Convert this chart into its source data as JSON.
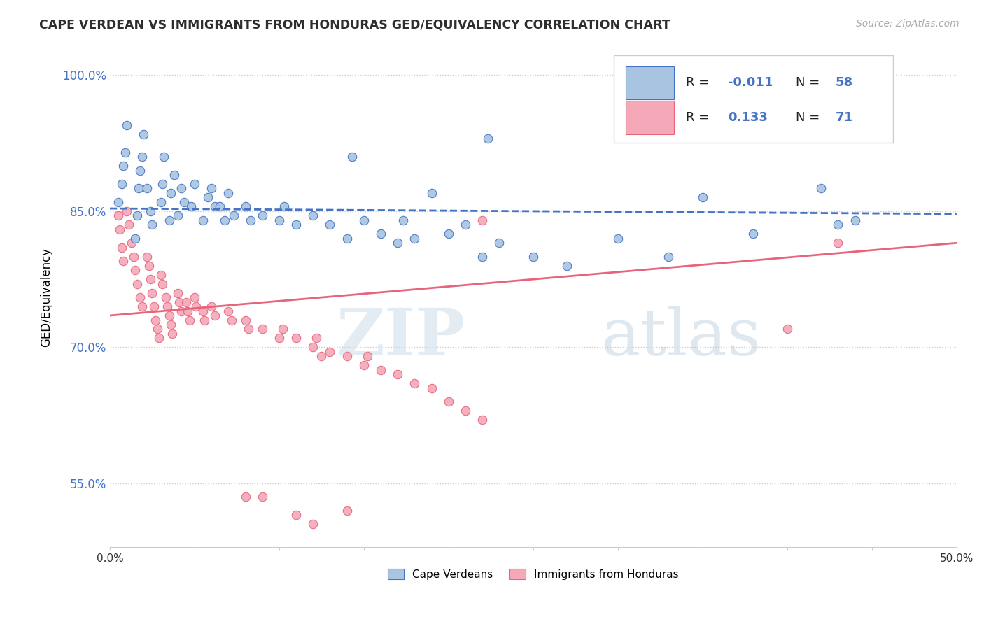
{
  "title": "CAPE VERDEAN VS IMMIGRANTS FROM HONDURAS GED/EQUIVALENCY CORRELATION CHART",
  "source": "Source: ZipAtlas.com",
  "ylabel": "GED/Equivalency",
  "xlim": [
    0.0,
    0.5
  ],
  "ylim": [
    0.48,
    1.03
  ],
  "yticks": [
    0.55,
    0.7,
    0.85,
    1.0
  ],
  "ytick_labels": [
    "55.0%",
    "70.0%",
    "85.0%",
    "100.0%"
  ],
  "xticks": [
    0.0,
    0.05,
    0.1,
    0.15,
    0.2,
    0.25,
    0.3,
    0.35,
    0.4,
    0.45,
    0.5
  ],
  "xtick_labels": [
    "0.0%",
    "",
    "",
    "",
    "",
    "",
    "",
    "",
    "",
    "",
    "50.0%"
  ],
  "grid_ticks": [
    0.55,
    0.7,
    0.85,
    1.0
  ],
  "blue_R": "-0.011",
  "blue_N": "58",
  "pink_R": "0.133",
  "pink_N": "71",
  "blue_color": "#a8c4e0",
  "pink_color": "#f4a8b8",
  "blue_line_color": "#4472c4",
  "pink_line_color": "#e8647a",
  "watermark_zip": "ZIP",
  "watermark_atlas": "atlas",
  "legend_label_blue": "Cape Verdeans",
  "legend_label_pink": "Immigrants from Honduras",
  "blue_line_y": [
    0.853,
    0.847
  ],
  "pink_line_y": [
    0.735,
    0.815
  ],
  "blue_scatter": [
    [
      0.005,
      0.86
    ],
    [
      0.007,
      0.88
    ],
    [
      0.008,
      0.9
    ],
    [
      0.009,
      0.915
    ],
    [
      0.01,
      0.945
    ],
    [
      0.015,
      0.82
    ],
    [
      0.016,
      0.845
    ],
    [
      0.017,
      0.875
    ],
    [
      0.018,
      0.895
    ],
    [
      0.019,
      0.91
    ],
    [
      0.02,
      0.935
    ],
    [
      0.022,
      0.875
    ],
    [
      0.024,
      0.85
    ],
    [
      0.025,
      0.835
    ],
    [
      0.03,
      0.86
    ],
    [
      0.031,
      0.88
    ],
    [
      0.032,
      0.91
    ],
    [
      0.035,
      0.84
    ],
    [
      0.036,
      0.87
    ],
    [
      0.038,
      0.89
    ],
    [
      0.04,
      0.845
    ],
    [
      0.042,
      0.875
    ],
    [
      0.044,
      0.86
    ],
    [
      0.048,
      0.855
    ],
    [
      0.05,
      0.88
    ],
    [
      0.055,
      0.84
    ],
    [
      0.058,
      0.865
    ],
    [
      0.06,
      0.875
    ],
    [
      0.062,
      0.855
    ],
    [
      0.065,
      0.855
    ],
    [
      0.068,
      0.84
    ],
    [
      0.07,
      0.87
    ],
    [
      0.073,
      0.845
    ],
    [
      0.08,
      0.855
    ],
    [
      0.083,
      0.84
    ],
    [
      0.09,
      0.845
    ],
    [
      0.1,
      0.84
    ],
    [
      0.103,
      0.855
    ],
    [
      0.11,
      0.835
    ],
    [
      0.12,
      0.845
    ],
    [
      0.13,
      0.835
    ],
    [
      0.14,
      0.82
    ],
    [
      0.143,
      0.91
    ],
    [
      0.15,
      0.84
    ],
    [
      0.16,
      0.825
    ],
    [
      0.17,
      0.815
    ],
    [
      0.173,
      0.84
    ],
    [
      0.18,
      0.82
    ],
    [
      0.19,
      0.87
    ],
    [
      0.2,
      0.825
    ],
    [
      0.21,
      0.835
    ],
    [
      0.22,
      0.8
    ],
    [
      0.223,
      0.93
    ],
    [
      0.23,
      0.815
    ],
    [
      0.25,
      0.8
    ],
    [
      0.27,
      0.79
    ],
    [
      0.3,
      0.82
    ],
    [
      0.33,
      0.8
    ],
    [
      0.35,
      0.865
    ],
    [
      0.38,
      0.825
    ],
    [
      0.42,
      0.875
    ],
    [
      0.43,
      0.835
    ],
    [
      0.44,
      0.84
    ]
  ],
  "pink_scatter": [
    [
      0.005,
      0.845
    ],
    [
      0.006,
      0.83
    ],
    [
      0.007,
      0.81
    ],
    [
      0.008,
      0.795
    ],
    [
      0.01,
      0.85
    ],
    [
      0.011,
      0.835
    ],
    [
      0.013,
      0.815
    ],
    [
      0.014,
      0.8
    ],
    [
      0.015,
      0.785
    ],
    [
      0.016,
      0.77
    ],
    [
      0.018,
      0.755
    ],
    [
      0.019,
      0.745
    ],
    [
      0.022,
      0.8
    ],
    [
      0.023,
      0.79
    ],
    [
      0.024,
      0.775
    ],
    [
      0.025,
      0.76
    ],
    [
      0.026,
      0.745
    ],
    [
      0.027,
      0.73
    ],
    [
      0.028,
      0.72
    ],
    [
      0.029,
      0.71
    ],
    [
      0.03,
      0.78
    ],
    [
      0.031,
      0.77
    ],
    [
      0.033,
      0.755
    ],
    [
      0.034,
      0.745
    ],
    [
      0.035,
      0.735
    ],
    [
      0.036,
      0.725
    ],
    [
      0.037,
      0.715
    ],
    [
      0.04,
      0.76
    ],
    [
      0.041,
      0.75
    ],
    [
      0.042,
      0.74
    ],
    [
      0.045,
      0.75
    ],
    [
      0.046,
      0.74
    ],
    [
      0.047,
      0.73
    ],
    [
      0.05,
      0.755
    ],
    [
      0.051,
      0.745
    ],
    [
      0.055,
      0.74
    ],
    [
      0.056,
      0.73
    ],
    [
      0.06,
      0.745
    ],
    [
      0.062,
      0.735
    ],
    [
      0.07,
      0.74
    ],
    [
      0.072,
      0.73
    ],
    [
      0.08,
      0.73
    ],
    [
      0.082,
      0.72
    ],
    [
      0.09,
      0.72
    ],
    [
      0.1,
      0.71
    ],
    [
      0.102,
      0.72
    ],
    [
      0.11,
      0.71
    ],
    [
      0.12,
      0.7
    ],
    [
      0.122,
      0.71
    ],
    [
      0.125,
      0.69
    ],
    [
      0.13,
      0.695
    ],
    [
      0.14,
      0.69
    ],
    [
      0.15,
      0.68
    ],
    [
      0.152,
      0.69
    ],
    [
      0.16,
      0.675
    ],
    [
      0.17,
      0.67
    ],
    [
      0.18,
      0.66
    ],
    [
      0.19,
      0.655
    ],
    [
      0.2,
      0.64
    ],
    [
      0.21,
      0.63
    ],
    [
      0.22,
      0.62
    ],
    [
      0.08,
      0.535
    ],
    [
      0.09,
      0.535
    ],
    [
      0.11,
      0.515
    ],
    [
      0.12,
      0.505
    ],
    [
      0.14,
      0.52
    ],
    [
      0.22,
      0.84
    ],
    [
      0.4,
      0.72
    ],
    [
      0.43,
      0.815
    ]
  ]
}
